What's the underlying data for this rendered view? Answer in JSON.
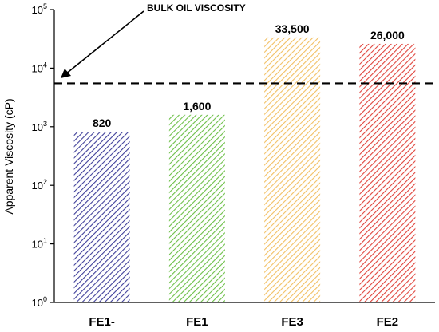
{
  "chart_data": {
    "type": "bar",
    "categories": [
      "FE1-",
      "FE1",
      "FE3",
      "FE2"
    ],
    "values": [
      820,
      1600,
      33500,
      26000
    ],
    "value_labels": [
      "820",
      "1,600",
      "33,500",
      "26,000"
    ],
    "bar_colors": [
      "#3f3f9a",
      "#6cbf47",
      "#f2c064",
      "#e0443c"
    ],
    "pattern": "diagonal-hatch",
    "title": "",
    "xlabel": "",
    "ylabel": "Apparent Viscosity (cP)",
    "yscale": "log",
    "ylim": [
      1,
      100000
    ],
    "yticks": [
      {
        "base": "10",
        "exp": "0",
        "value": 1
      },
      {
        "base": "10",
        "exp": "1",
        "value": 10
      },
      {
        "base": "10",
        "exp": "2",
        "value": 100
      },
      {
        "base": "10",
        "exp": "3",
        "value": 1000
      },
      {
        "base": "10",
        "exp": "4",
        "value": 10000
      },
      {
        "base": "10",
        "exp": "5",
        "value": 100000
      }
    ],
    "reference_line": {
      "value": 5500,
      "style": "dashed",
      "label": "BULK OIL VISCOSITY"
    },
    "grid": false,
    "legend": "none"
  }
}
